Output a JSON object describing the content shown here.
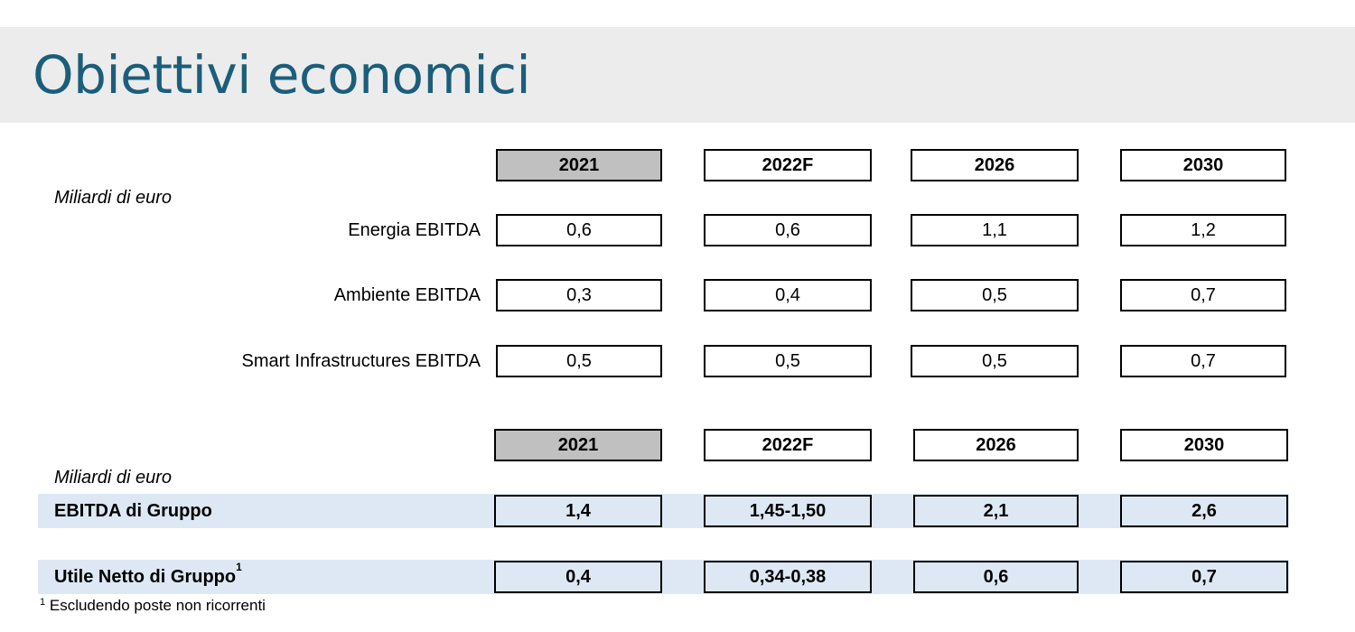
{
  "title": "Obiettivi economici",
  "unit_label": "Miliardi di euro",
  "years": [
    "2021",
    "2022F",
    "2026",
    "2030"
  ],
  "segment_table": {
    "rows": [
      {
        "label": "Energia EBITDA",
        "values": [
          "0,6",
          "0,6",
          "1,1",
          "1,2"
        ]
      },
      {
        "label": "Ambiente EBITDA",
        "values": [
          "0,3",
          "0,4",
          "0,5",
          "0,7"
        ]
      },
      {
        "label": "Smart Infrastructures EBITDA",
        "values": [
          "0,5",
          "0,5",
          "0,5",
          "0,7"
        ]
      }
    ]
  },
  "group_table": {
    "rows": [
      {
        "label": "EBITDA di Gruppo",
        "values": [
          "1,4",
          "1,45-1,50",
          "2,1",
          "2,6"
        ]
      },
      {
        "label": "Utile Netto di Gruppo",
        "footnote_mark": "1",
        "values": [
          "0,4",
          "0,34-0,38",
          "0,6",
          "0,7"
        ]
      }
    ]
  },
  "footnote": {
    "mark": "1",
    "text": "Escludendo poste non ricorrenti"
  },
  "colors": {
    "title": "#1b5e7b",
    "title_band": "#ececec",
    "base_year_fill": "#c0c0c0",
    "highlight_band": "#dde8f4"
  }
}
